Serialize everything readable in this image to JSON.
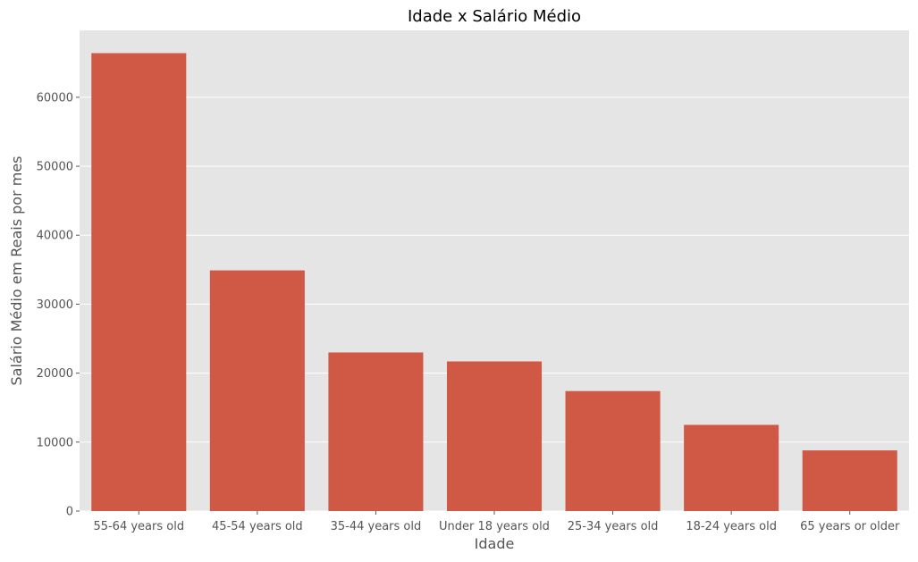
{
  "chart_data": {
    "type": "bar",
    "title": "Idade x Salário Médio",
    "xlabel": "Idade",
    "ylabel": "Salário Médio em Reais por mes",
    "categories": [
      "55-64 years old",
      "45-54 years old",
      "35-44 years old",
      "Under 18 years old",
      "25-34 years old",
      "18-24 years old",
      "65 years or older"
    ],
    "values": [
      66400,
      34900,
      23000,
      21700,
      17400,
      12500,
      8800
    ],
    "ylim": [
      0,
      69700
    ],
    "yticks": [
      0,
      10000,
      20000,
      30000,
      40000,
      50000,
      60000
    ],
    "grid": true,
    "legend": false,
    "colors": {
      "bar": "#CF5945",
      "plot_background": "#E5E5E5",
      "grid": "#FFFFFF",
      "text": "#555555",
      "title": "#000000"
    }
  }
}
